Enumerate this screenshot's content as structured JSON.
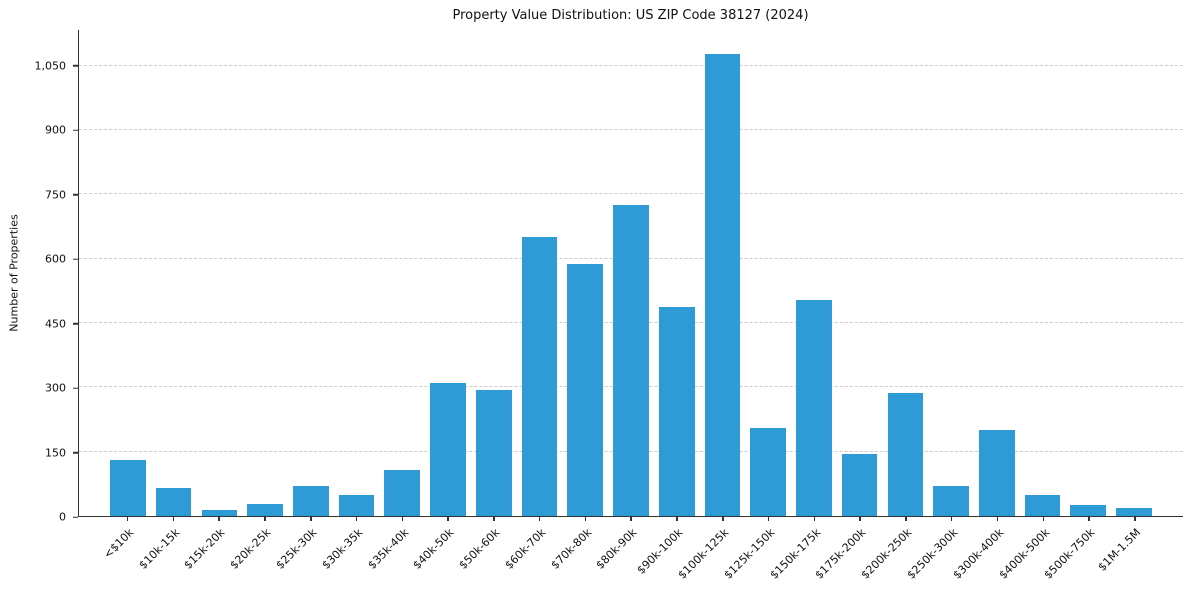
{
  "chart_data": {
    "type": "bar",
    "title": "Property Value Distribution: US ZIP Code 38127 (2024)",
    "xlabel": "",
    "ylabel": "Number of Properties",
    "categories": [
      "<$10k",
      "$10k-15k",
      "$15k-20k",
      "$20k-25k",
      "$25k-30k",
      "$30k-35k",
      "$35k-40k",
      "$40k-50k",
      "$50k-60k",
      "$60k-70k",
      "$70k-80k",
      "$80k-90k",
      "$90k-100k",
      "$100k-125k",
      "$125k-150k",
      "$150k-175k",
      "$175k-200k",
      "$200k-250k",
      "$250k-300k",
      "$300k-400k",
      "$400k-500k",
      "$500k-750k",
      "$1M-1.5M"
    ],
    "values": [
      130,
      65,
      13,
      28,
      70,
      48,
      107,
      310,
      293,
      650,
      588,
      724,
      487,
      1076,
      205,
      503,
      144,
      287,
      70,
      200,
      48,
      26,
      19
    ],
    "yticks": [
      0,
      150,
      300,
      450,
      600,
      750,
      900,
      1050
    ],
    "ytick_labels": [
      "0",
      "150",
      "300",
      "450",
      "600",
      "750",
      "900",
      "1,050"
    ],
    "ylim": [
      0,
      1133
    ],
    "bar_color": "#2e9bd6",
    "grid": "horizontal-dashed",
    "legend": "none"
  }
}
